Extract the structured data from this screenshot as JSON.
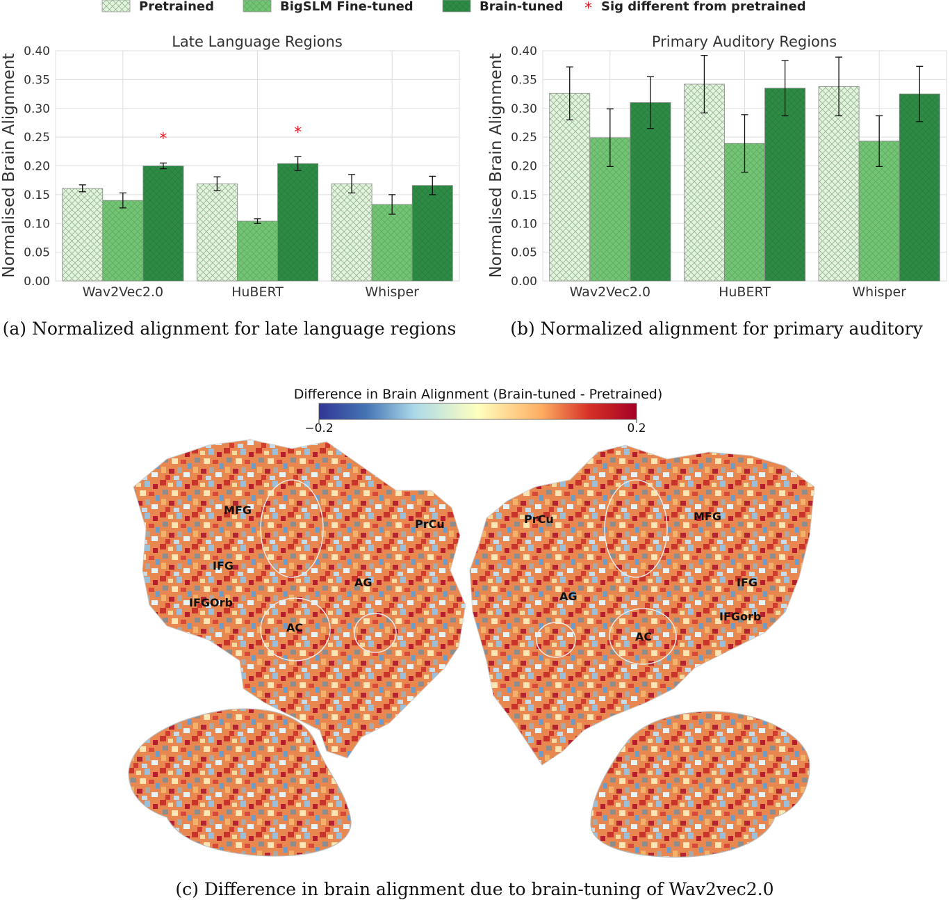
{
  "colors": {
    "pretrained": "#e4f3df",
    "bigslm": "#74c476",
    "braintuned": "#2e8b45",
    "sig": "#e0202a",
    "grid": "#dddddd"
  },
  "legend": {
    "items": [
      "Pretrained",
      "BigSLM Fine-tuned",
      "Brain-tuned"
    ],
    "sig_marker": "*",
    "sig_label": "Sig different from pretrained"
  },
  "chart_data": [
    {
      "type": "bar",
      "title": "Late Language Regions",
      "ylabel": "Normalised Brain Alignment",
      "xlabel": "",
      "ylim": [
        0,
        0.4
      ],
      "yticks": [
        "0.00",
        "0.05",
        "0.10",
        "0.15",
        "0.20",
        "0.25",
        "0.30",
        "0.35",
        "0.40"
      ],
      "categories": [
        "Wav2Vec2.0",
        "HuBERT",
        "Whisper"
      ],
      "series": [
        {
          "name": "Pretrained",
          "values": [
            0.161,
            0.169,
            0.169
          ],
          "errors": [
            0.006,
            0.012,
            0.016
          ]
        },
        {
          "name": "BigSLM Fine-tuned",
          "values": [
            0.14,
            0.104,
            0.133
          ],
          "errors": [
            0.013,
            0.004,
            0.017
          ]
        },
        {
          "name": "Brain-tuned",
          "values": [
            0.2,
            0.204,
            0.166
          ],
          "errors": [
            0.005,
            0.012,
            0.016
          ]
        }
      ],
      "significant": [
        true,
        true,
        false
      ],
      "caption": "(a) Normalized alignment for late language regions"
    },
    {
      "type": "bar",
      "title": "Primary Auditory Regions",
      "ylabel": "Normalised Brain Alignment",
      "xlabel": "",
      "ylim": [
        0,
        0.4
      ],
      "yticks": [
        "0.00",
        "0.05",
        "0.10",
        "0.15",
        "0.20",
        "0.25",
        "0.30",
        "0.35",
        "0.40"
      ],
      "categories": [
        "Wav2Vec2.0",
        "HuBERT",
        "Whisper"
      ],
      "series": [
        {
          "name": "Pretrained",
          "values": [
            0.326,
            0.342,
            0.338
          ],
          "errors": [
            0.046,
            0.05,
            0.051
          ]
        },
        {
          "name": "BigSLM Fine-tuned",
          "values": [
            0.249,
            0.239,
            0.243
          ],
          "errors": [
            0.05,
            0.05,
            0.044
          ]
        },
        {
          "name": "Brain-tuned",
          "values": [
            0.31,
            0.335,
            0.325
          ],
          "errors": [
            0.045,
            0.048,
            0.048
          ]
        }
      ],
      "significant": [
        false,
        false,
        false
      ],
      "caption": "(b) Normalized alignment for primary auditory"
    }
  ],
  "brain_map": {
    "colorbar_title": "Difference in Brain Alignment (Brain-tuned - Pretrained)",
    "colorbar_min": "−0.2",
    "colorbar_max": "0.2",
    "left_labels": [
      "MFG",
      "IFG",
      "IFGOrb",
      "AC",
      "AG",
      "PrCu"
    ],
    "right_labels": [
      "PrCu",
      "MFG",
      "AG",
      "IFG",
      "IFGorb",
      "AC"
    ],
    "caption": "(c) Difference in brain alignment due to brain-tuning of Wav2vec2.0"
  }
}
